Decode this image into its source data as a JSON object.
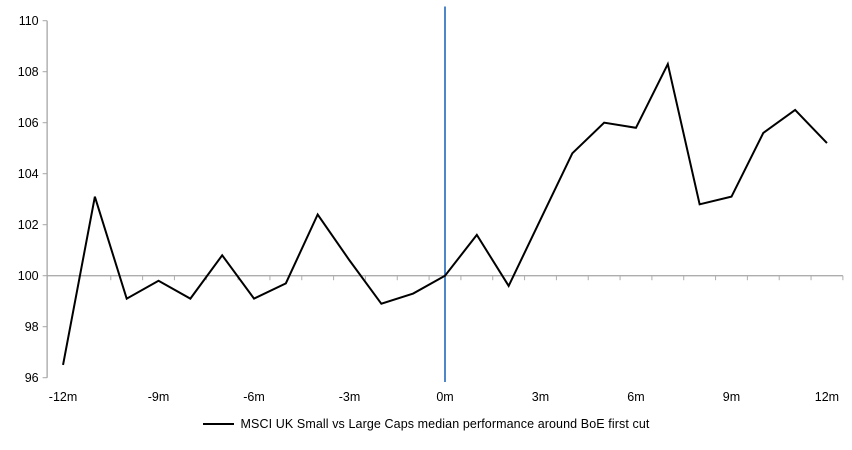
{
  "chart_data": {
    "type": "line",
    "title": "",
    "legend": "MSCI UK Small vs Large Caps median performance around BoE first cut",
    "xlabel": "",
    "ylabel": "",
    "x_unit": "months relative to BoE first cut",
    "x": [
      -12,
      -11,
      -10,
      -9,
      -8,
      -7,
      -6,
      -5,
      -4,
      -3,
      -2,
      -1,
      0,
      1,
      2,
      3,
      4,
      5,
      6,
      7,
      8,
      9,
      10,
      11,
      12
    ],
    "series": [
      {
        "name": "MSCI UK Small vs Large Caps median performance around BoE first cut",
        "values": [
          96.5,
          103.1,
          99.1,
          99.8,
          99.1,
          100.8,
          99.1,
          99.7,
          102.4,
          100.6,
          98.9,
          99.3,
          100.0,
          101.6,
          99.6,
          102.2,
          104.8,
          106.0,
          105.8,
          108.3,
          102.8,
          103.1,
          105.6,
          106.5,
          105.2
        ]
      }
    ],
    "x_tick_labels": [
      "-12m",
      "-9m",
      "-6m",
      "-3m",
      "0m",
      "3m",
      "6m",
      "9m",
      "12m"
    ],
    "x_tick_months": [
      -12,
      -9,
      -6,
      -3,
      0,
      3,
      6,
      9,
      12
    ],
    "y_ticks": [
      96,
      98,
      100,
      102,
      104,
      106,
      108,
      110
    ],
    "ylim": [
      96,
      110
    ],
    "baseline_value": 100,
    "event_line_month": 0,
    "legend_position": "bottom",
    "grid": "off",
    "colors": {
      "series": "#000000",
      "event_line": "#4E86C8",
      "axis": "#A6A6A6",
      "baseline": "#ADADAD",
      "tick_text": "#000000"
    }
  }
}
